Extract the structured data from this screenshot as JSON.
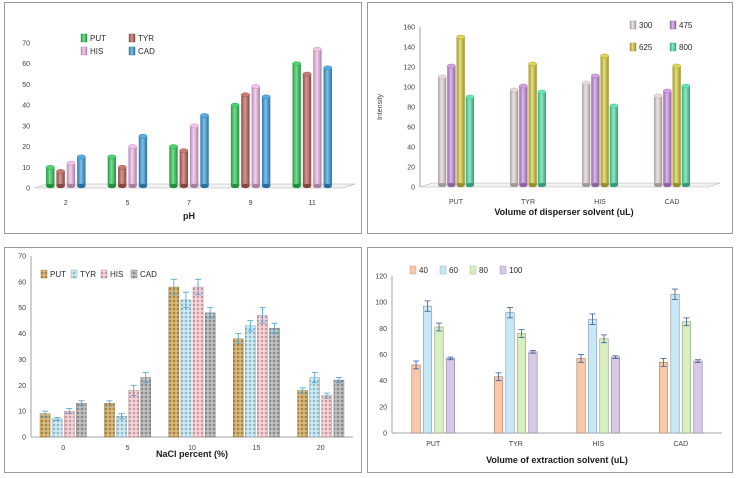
{
  "chart_data": [
    {
      "type": "bar",
      "categories": [
        "2",
        "5",
        "7",
        "9",
        "11"
      ],
      "series": [
        {
          "name": "PUT",
          "values": [
            10,
            15,
            20,
            40,
            60
          ]
        },
        {
          "name": "TYR",
          "values": [
            8,
            10,
            18,
            45,
            55
          ]
        },
        {
          "name": "HIS",
          "values": [
            12,
            20,
            30,
            49,
            67
          ]
        },
        {
          "name": "CAD",
          "values": [
            15,
            25,
            35,
            44,
            58
          ]
        }
      ],
      "colors": [
        "#2ecc55",
        "#c0625a",
        "#f0b8e8",
        "#3a9ee0"
      ],
      "xlabel": "pH",
      "ylabel": "",
      "ylim": [
        0,
        70
      ],
      "yticks": [
        "0",
        "10",
        "20",
        "30",
        "40",
        "50",
        "60",
        "70"
      ],
      "style": "3d-cylinder",
      "grid": false,
      "legend": "top-left"
    },
    {
      "type": "bar",
      "categories": [
        "PUT",
        "TYR",
        "HIS",
        "CAD"
      ],
      "series": [
        {
          "name": "300",
          "values": [
            110,
            97,
            104,
            91
          ]
        },
        {
          "name": "475",
          "values": [
            121,
            101,
            111,
            96
          ]
        },
        {
          "name": "625",
          "values": [
            150,
            123,
            131,
            121
          ]
        },
        {
          "name": "800",
          "values": [
            90,
            95,
            81,
            101
          ]
        }
      ],
      "colors": [
        "#e6d6d8",
        "#c98ee0",
        "#d8cc3a",
        "#4fe0a8"
      ],
      "xlabel": "Volume of disperser solvent (uL)",
      "ylabel": "Intensity",
      "ylim": [
        0,
        160
      ],
      "yticks": [
        "0",
        "20",
        "40",
        "60",
        "80",
        "100",
        "120",
        "140",
        "160"
      ],
      "style": "3d-cylinder",
      "grid": false,
      "legend": "top-right"
    },
    {
      "type": "bar",
      "categories": [
        "0",
        "5",
        "10",
        "15",
        "20"
      ],
      "series": [
        {
          "name": "PUT",
          "values": [
            9,
            13,
            58,
            38,
            18
          ],
          "errors": [
            1,
            1,
            3,
            2,
            1
          ]
        },
        {
          "name": "TYR",
          "values": [
            7,
            8,
            53,
            43,
            23
          ],
          "errors": [
            0.5,
            1,
            3,
            2,
            2
          ]
        },
        {
          "name": "HIS",
          "values": [
            10,
            18,
            58,
            47,
            16
          ],
          "errors": [
            1,
            2,
            3,
            3,
            1
          ]
        },
        {
          "name": "CAD",
          "values": [
            13,
            23,
            48,
            42,
            22
          ],
          "errors": [
            1,
            2,
            2,
            2,
            1
          ]
        }
      ],
      "colors": [
        "#c8a050",
        "#b8e0ee",
        "#f2c0c8",
        "#a8a8a8"
      ],
      "xlabel": "NaCl percent (%)",
      "ylabel": "",
      "ylim": [
        0,
        70
      ],
      "yticks": [
        "0",
        "10",
        "20",
        "30",
        "40",
        "50",
        "60",
        "70"
      ],
      "style": "textured",
      "grid": false,
      "legend": "top-left"
    },
    {
      "type": "bar",
      "categories": [
        "PUT",
        "TYR",
        "HIS",
        "CAD"
      ],
      "series": [
        {
          "name": "40",
          "values": [
            52,
            43,
            57,
            54
          ],
          "errors": [
            3,
            3,
            3,
            3
          ]
        },
        {
          "name": "60",
          "values": [
            97,
            92,
            87,
            106
          ],
          "errors": [
            4,
            4,
            4,
            4
          ]
        },
        {
          "name": "80",
          "values": [
            81,
            76,
            72,
            85
          ],
          "errors": [
            3,
            3,
            3,
            3
          ]
        },
        {
          "name": "100",
          "values": [
            57,
            62,
            58,
            55
          ],
          "errors": [
            1,
            1,
            1,
            1
          ]
        }
      ],
      "colors": [
        "#f8c8a8",
        "#c8e8f8",
        "#d8f0c0",
        "#d8c8e8"
      ],
      "xlabel": "Volume of extraction solvent (uL)",
      "ylabel": "",
      "ylim": [
        0,
        120
      ],
      "yticks": [
        "0",
        "20",
        "40",
        "60",
        "80",
        "100",
        "120"
      ],
      "style": "flat",
      "grid": false,
      "legend": "top-left"
    }
  ]
}
